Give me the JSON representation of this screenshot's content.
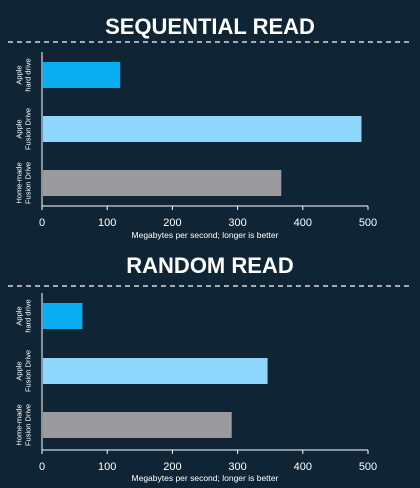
{
  "chart_data": [
    {
      "type": "bar",
      "orientation": "horizontal",
      "title": "SEQUENTIAL READ",
      "xlabel": "Megabytes per second; longer is better",
      "categories": [
        [
          "Apple",
          "hard drive"
        ],
        [
          "Apple",
          "Fusion Drive"
        ],
        [
          "Home-made",
          "Fusion Drive"
        ]
      ],
      "values": [
        120,
        490,
        367
      ],
      "colors": [
        "#0aaef0",
        "#8fd6fc",
        "#9b9b9e"
      ],
      "xlim": [
        0,
        500
      ],
      "ticks": [
        0,
        100,
        200,
        300,
        400,
        500
      ],
      "grid": false
    },
    {
      "type": "bar",
      "orientation": "horizontal",
      "title": "RANDOM READ",
      "xlabel": "Megabytes per second; longer is better",
      "categories": [
        [
          "Apple",
          "hard drive"
        ],
        [
          "Apple",
          "Fusion Drive"
        ],
        [
          "Home-made",
          "Fusion Drive"
        ]
      ],
      "values": [
        62,
        346,
        291
      ],
      "colors": [
        "#0aaef0",
        "#8fd6fc",
        "#9b9b9e"
      ],
      "xlim": [
        0,
        500
      ],
      "ticks": [
        0,
        100,
        200,
        300,
        400,
        500
      ],
      "grid": false
    }
  ]
}
